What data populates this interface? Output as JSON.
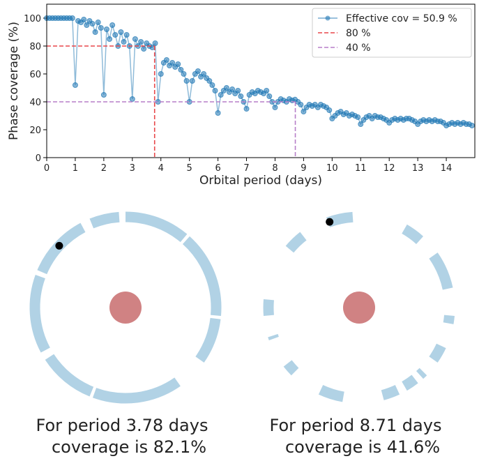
{
  "chart_data": [
    {
      "type": "line",
      "xlabel": "Orbital period (days)",
      "ylabel": "Phase coverage (%)",
      "xlim": [
        0,
        15
      ],
      "ylim": [
        0,
        110
      ],
      "xticks": [
        0,
        1,
        2,
        3,
        4,
        5,
        6,
        7,
        8,
        9,
        10,
        11,
        12,
        13,
        14
      ],
      "yticks": [
        0,
        20,
        40,
        60,
        80,
        100
      ],
      "legend": "upper right",
      "x": [
        0,
        0.1,
        0.2,
        0.3,
        0.4,
        0.5,
        0.6,
        0.7,
        0.8,
        0.9,
        1,
        1.1,
        1.2,
        1.3,
        1.4,
        1.5,
        1.6,
        1.7,
        1.8,
        1.9,
        2,
        2.1,
        2.2,
        2.3,
        2.4,
        2.5,
        2.6,
        2.7,
        2.8,
        2.9,
        3,
        3.1,
        3.2,
        3.3,
        3.4,
        3.5,
        3.6,
        3.7,
        3.8,
        3.9,
        4,
        4.1,
        4.2,
        4.3,
        4.4,
        4.5,
        4.6,
        4.7,
        4.8,
        4.9,
        5,
        5.1,
        5.2,
        5.3,
        5.4,
        5.5,
        5.6,
        5.7,
        5.8,
        5.9,
        6,
        6.1,
        6.2,
        6.3,
        6.4,
        6.5,
        6.6,
        6.7,
        6.8,
        6.9,
        7,
        7.1,
        7.2,
        7.3,
        7.4,
        7.5,
        7.6,
        7.7,
        7.8,
        7.9,
        8,
        8.1,
        8.2,
        8.3,
        8.4,
        8.5,
        8.6,
        8.7,
        8.8,
        8.9,
        9,
        9.1,
        9.2,
        9.3,
        9.4,
        9.5,
        9.6,
        9.7,
        9.8,
        9.9,
        10,
        10.1,
        10.2,
        10.3,
        10.4,
        10.5,
        10.6,
        10.7,
        10.8,
        10.9,
        11,
        11.1,
        11.2,
        11.3,
        11.4,
        11.5,
        11.6,
        11.7,
        11.8,
        11.9,
        12,
        12.1,
        12.2,
        12.3,
        12.4,
        12.5,
        12.6,
        12.7,
        12.8,
        12.9,
        13,
        13.1,
        13.2,
        13.3,
        13.4,
        13.5,
        13.6,
        13.7,
        13.8,
        13.9,
        14,
        14.1,
        14.2,
        14.3,
        14.4,
        14.5,
        14.6,
        14.7,
        14.8,
        14.9
      ],
      "series": [
        {
          "name": "Effective cov = 50.9 %",
          "color": "#1f77b4",
          "values": [
            100,
            100,
            100,
            100,
            100,
            100,
            100,
            100,
            100,
            100,
            52,
            98,
            97,
            99,
            95,
            98,
            96,
            90,
            97,
            93,
            45,
            92,
            85,
            95,
            88,
            80,
            90,
            83,
            88,
            80,
            42,
            85,
            80,
            83,
            78,
            82,
            80,
            79,
            82,
            40,
            60,
            68,
            70,
            66,
            68,
            65,
            67,
            63,
            60,
            55,
            40,
            55,
            60,
            62,
            58,
            60,
            57,
            55,
            52,
            48,
            32,
            45,
            48,
            50,
            47,
            49,
            46,
            48,
            44,
            40,
            35,
            45,
            47,
            46,
            48,
            47,
            46,
            48,
            44,
            40,
            36,
            40,
            42,
            41,
            40,
            42,
            41,
            41.6,
            40,
            38,
            33,
            36,
            38,
            37,
            38,
            36,
            38,
            37,
            36,
            34,
            28,
            30,
            32,
            33,
            31,
            32,
            30,
            31,
            30,
            29,
            24,
            27,
            29,
            30,
            28,
            30,
            29,
            29,
            28,
            27,
            25,
            27,
            28,
            27,
            28,
            27,
            28,
            28,
            27,
            26,
            24,
            26,
            27,
            26,
            27,
            26,
            27,
            26,
            26,
            25,
            23,
            24,
            25,
            24,
            25,
            24,
            25,
            24,
            24,
            23
          ]
        }
      ],
      "reference_lines": [
        {
          "name": "80 %",
          "color": "#e8474a",
          "y": 80,
          "x": 3.78
        },
        {
          "name": "40 %",
          "color": "#b77fc9",
          "y": 40,
          "x": 8.71
        }
      ]
    },
    {
      "type": "ring",
      "caption": [
        "For period 3.78 days",
        "coverage is 82.1%"
      ],
      "color": "#9ec7df",
      "arcs": [
        [
          0,
          40
        ],
        [
          42,
          95
        ],
        [
          97,
          125
        ],
        [
          145,
          200
        ],
        [
          202,
          237
        ],
        [
          242,
          290
        ],
        [
          293,
          332
        ],
        [
          338,
          356
        ]
      ],
      "marker_angle": 313
    },
    {
      "type": "ring",
      "caption": [
        "For period 8.71 days",
        "coverage is 41.6%"
      ],
      "color": "#9ec7df",
      "arcs": [
        [
          340,
          356
        ],
        [
          30,
          42
        ],
        [
          55,
          78
        ],
        [
          95,
          100
        ],
        [
          115,
          125
        ],
        [
          135,
          138
        ],
        [
          142,
          150
        ],
        [
          155,
          165
        ],
        [
          190,
          205
        ],
        [
          225,
          232
        ],
        [
          250,
          252
        ],
        [
          265,
          275
        ],
        [
          310,
          322
        ]
      ],
      "marker_angle": 341
    }
  ]
}
